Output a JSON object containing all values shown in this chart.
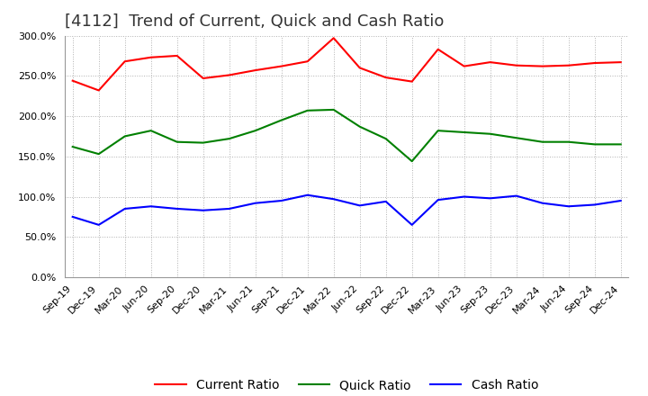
{
  "title": "[4112]  Trend of Current, Quick and Cash Ratio",
  "background_color": "#ffffff",
  "grid_color": "#b0b0b0",
  "ylim": [
    0.0,
    3.0
  ],
  "yticks": [
    0.0,
    0.5,
    1.0,
    1.5,
    2.0,
    2.5,
    3.0
  ],
  "x_labels": [
    "Sep-19",
    "Dec-19",
    "Mar-20",
    "Jun-20",
    "Sep-20",
    "Dec-20",
    "Mar-21",
    "Jun-21",
    "Sep-21",
    "Dec-21",
    "Mar-22",
    "Jun-22",
    "Sep-22",
    "Dec-22",
    "Mar-23",
    "Jun-23",
    "Sep-23",
    "Dec-23",
    "Mar-24",
    "Jun-24",
    "Sep-24",
    "Dec-24"
  ],
  "current_ratio": [
    2.44,
    2.32,
    2.68,
    2.73,
    2.75,
    2.47,
    2.51,
    2.57,
    2.62,
    2.68,
    2.97,
    2.6,
    2.48,
    2.43,
    2.83,
    2.62,
    2.67,
    2.63,
    2.62,
    2.63,
    2.66,
    2.67
  ],
  "quick_ratio": [
    1.62,
    1.53,
    1.75,
    1.82,
    1.68,
    1.67,
    1.72,
    1.82,
    1.95,
    2.07,
    2.08,
    1.87,
    1.72,
    1.44,
    1.82,
    1.8,
    1.78,
    1.73,
    1.68,
    1.68,
    1.65,
    1.65
  ],
  "cash_ratio": [
    0.75,
    0.65,
    0.85,
    0.88,
    0.85,
    0.83,
    0.85,
    0.92,
    0.95,
    1.02,
    0.97,
    0.89,
    0.94,
    0.65,
    0.96,
    1.0,
    0.98,
    1.01,
    0.92,
    0.88,
    0.9,
    0.95
  ],
  "current_color": "#ff0000",
  "quick_color": "#008000",
  "cash_color": "#0000ff",
  "line_width": 1.5,
  "title_fontsize": 13,
  "tick_fontsize": 8,
  "legend_fontsize": 10
}
